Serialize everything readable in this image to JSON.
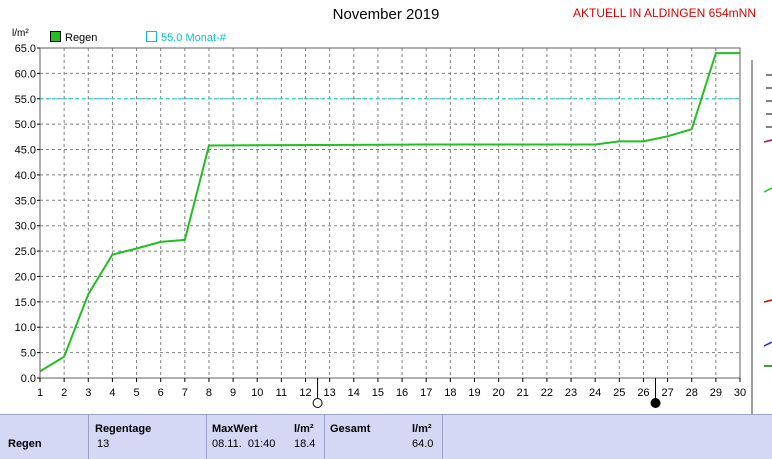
{
  "title": "November 2019",
  "station": "AKTUELL IN ALDINGEN 654mNN",
  "colors": {
    "rain": "#20c020",
    "month_line": "#00e0e0",
    "grid": "#808080",
    "panel": "#d4d8f4"
  },
  "chart_data": {
    "type": "line",
    "ylabel": "l/m²",
    "ylim": [
      0,
      65
    ],
    "yticks": [
      "0.0",
      "5.0",
      "10.0",
      "15.0",
      "20.0",
      "25.0",
      "30.0",
      "35.0",
      "40.0",
      "45.0",
      "50.0",
      "55.0",
      "60.0",
      "65.0"
    ],
    "xlim": [
      1,
      30
    ],
    "xticks": [
      "1",
      "2",
      "3",
      "4",
      "5",
      "6",
      "7",
      "8",
      "9",
      "10",
      "11",
      "12",
      "13",
      "14",
      "15",
      "16",
      "17",
      "18",
      "19",
      "20",
      "21",
      "22",
      "23",
      "24",
      "25",
      "26",
      "27",
      "28",
      "29",
      "30"
    ],
    "legend_placement": "top-left",
    "grid": true,
    "series": [
      {
        "name": "Regen",
        "x": [
          1,
          2,
          3,
          4,
          5,
          6,
          7,
          8,
          17,
          24,
          25,
          26,
          27,
          28,
          29,
          30
        ],
        "values": [
          1.3,
          4.2,
          16.5,
          24.3,
          25.5,
          26.8,
          27.2,
          45.8,
          46.0,
          46.0,
          46.6,
          46.6,
          47.6,
          49.0,
          64.0,
          64.0
        ]
      }
    ],
    "reference_line": {
      "label": "55.0 Monat-#",
      "value": 55.0
    },
    "moon_markers": [
      {
        "x": 12.5,
        "phase": "full"
      },
      {
        "x": 26.5,
        "phase": "new"
      }
    ]
  },
  "stats": {
    "row_label": "Regen",
    "regentage_header": "Regentage",
    "regentage_value": "13",
    "maxwert_header": "MaxWert",
    "maxwert_unit": "l/m²",
    "maxwert_time": "08.11.  01:40",
    "maxwert_value": "18.4",
    "gesamt_header": "Gesamt",
    "gesamt_unit": "l/m²",
    "gesamt_value": "64.0"
  }
}
